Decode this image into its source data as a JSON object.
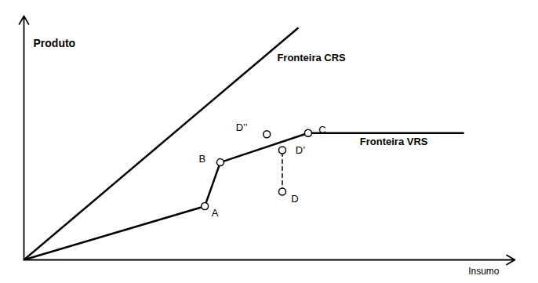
{
  "chart_data": {
    "type": "line",
    "xlabel": "Insumo",
    "ylabel": "Produto",
    "xlim": [
      0,
      9.5
    ],
    "ylim": [
      0,
      10
    ],
    "tick_labels": false,
    "grid": false,
    "color": "#000000",
    "series": [
      {
        "type": "line",
        "line_style": "solid",
        "x": [
          0,
          5.3
        ],
        "values": [
          0,
          9.5
        ]
      },
      {
        "type": "line",
        "line_style": "solid",
        "x": [
          0,
          3.5,
          3.8,
          5.5,
          8.5
        ],
        "values": [
          0,
          2.2,
          4.0,
          5.2,
          5.2
        ]
      },
      {
        "type": "line",
        "line_style": "dashed",
        "x": [
          5.0,
          5.0
        ],
        "values": [
          2.8,
          4.5
        ]
      },
      {
        "type": "scatter",
        "marker": "circle",
        "x": [
          3.5,
          3.8,
          5.5,
          5.0,
          5.0,
          4.7
        ],
        "values": [
          2.2,
          4.0,
          5.2,
          2.8,
          4.5,
          5.15
        ],
        "labels": [
          "A",
          "B",
          "C",
          "D",
          "D’",
          "D’’"
        ]
      }
    ],
    "annotations": [
      {
        "text": "Fronteira CRS",
        "x": 4.9,
        "y": 8.3
      },
      {
        "text": "Fronteira VRS",
        "x": 6.5,
        "y": 4.85
      }
    ]
  }
}
